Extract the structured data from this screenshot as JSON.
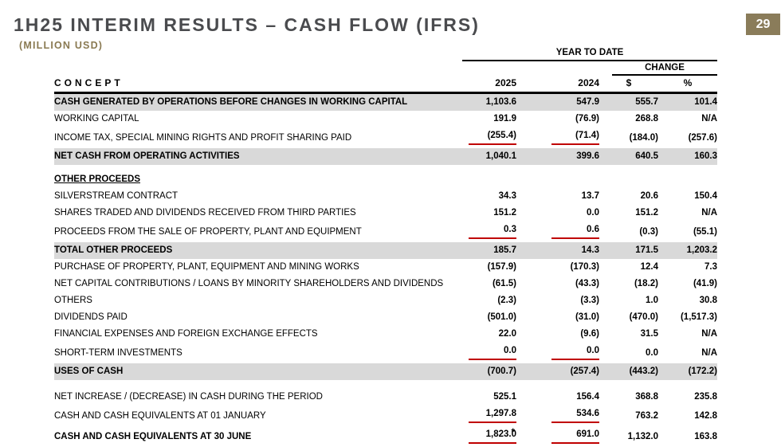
{
  "page": {
    "title": "1H25 INTERIM RESULTS – CASH FLOW (IFRS)",
    "subtitle": "(MILLION USD)",
    "page_number": "29"
  },
  "colors": {
    "accent_bronze": "#8a7a52",
    "page_box_bronze": "#8a7c5a",
    "title_gray": "#4a4b4e",
    "row_highlight_gray": "#d9d9d9",
    "underline_red": "#c00000"
  },
  "table": {
    "group_header": "YEAR TO DATE",
    "change_header": "CHANGE",
    "columns": {
      "concept": "CONCEPT",
      "y2025": "2025",
      "y2024": "2024",
      "dollar": "$",
      "percent": "%"
    },
    "rows": [
      {
        "type": "highlight",
        "label": "CASH GENERATED BY OPERATIONS BEFORE CHANGES IN WORKING CAPITAL",
        "y2025": "1,103.6",
        "y2024": "547.9",
        "usd": "555.7",
        "pct": "101.4"
      },
      {
        "type": "normal",
        "label": "WORKING CAPITAL",
        "y2025": "191.9",
        "y2024": "(76.9)",
        "usd": "268.8",
        "pct": "N/A"
      },
      {
        "type": "normal",
        "redline": true,
        "label": "INCOME TAX, SPECIAL MINING RIGHTS AND PROFIT SHARING PAID",
        "y2025": "(255.4)",
        "y2024": "(71.4)",
        "usd": "(184.0)",
        "pct": "(257.6)"
      },
      {
        "type": "highlight",
        "label": "NET CASH FROM OPERATING ACTIVITIES",
        "y2025": "1,040.1",
        "y2024": "399.6",
        "usd": "640.5",
        "pct": "160.3"
      },
      {
        "type": "spacer"
      },
      {
        "type": "section",
        "label": "OTHER PROCEEDS"
      },
      {
        "type": "normal",
        "label": "SILVERSTREAM CONTRACT",
        "y2025": "34.3",
        "y2024": "13.7",
        "usd": "20.6",
        "pct": "150.4"
      },
      {
        "type": "normal",
        "label": "SHARES TRADED AND DIVIDENDS RECEIVED FROM THIRD PARTIES",
        "y2025": "151.2",
        "y2024": "0.0",
        "usd": "151.2",
        "pct": "N/A"
      },
      {
        "type": "normal",
        "redline": true,
        "label": "PROCEEDS FROM THE SALE OF PROPERTY, PLANT AND EQUIPMENT",
        "y2025": "0.3",
        "y2024": "0.6",
        "usd": "(0.3)",
        "pct": "(55.1)"
      },
      {
        "type": "highlight",
        "label": "TOTAL OTHER PROCEEDS",
        "y2025": "185.7",
        "y2024": "14.3",
        "usd": "171.5",
        "pct": "1,203.2"
      },
      {
        "type": "normal",
        "label": "PURCHASE OF PROPERTY, PLANT, EQUIPMENT AND MINING WORKS",
        "y2025": "(157.9)",
        "y2024": "(170.3)",
        "usd": "12.4",
        "pct": "7.3"
      },
      {
        "type": "normal",
        "label": "NET CAPITAL CONTRIBUTIONS / LOANS BY MINORITY SHAREHOLDERS AND DIVIDENDS",
        "y2025": "(61.5)",
        "y2024": "(43.3)",
        "usd": "(18.2)",
        "pct": "(41.9)"
      },
      {
        "type": "normal",
        "label": "OTHERS",
        "y2025": "(2.3)",
        "y2024": "(3.3)",
        "usd": "1.0",
        "pct": "30.8"
      },
      {
        "type": "normal",
        "label": "DIVIDENDS PAID",
        "y2025": "(501.0)",
        "y2024": "(31.0)",
        "usd": "(470.0)",
        "pct": "(1,517.3)"
      },
      {
        "type": "normal",
        "label": "FINANCIAL EXPENSES AND FOREIGN EXCHANGE EFFECTS",
        "y2025": "22.0",
        "y2024": "(9.6)",
        "usd": "31.5",
        "pct": "N/A"
      },
      {
        "type": "normal",
        "redline": true,
        "label": "SHORT-TERM INVESTMENTS",
        "y2025": "0.0",
        "y2024": "0.0",
        "usd": "0.0",
        "pct": "N/A"
      },
      {
        "type": "highlight",
        "label": "USES OF CASH",
        "y2025": "(700.7)",
        "y2024": "(257.4)",
        "usd": "(443.2)",
        "pct": "(172.2)"
      },
      {
        "type": "spacer2"
      },
      {
        "type": "normal",
        "label": "NET INCREASE / (DECREASE) IN CASH DURING THE PERIOD",
        "y2025": "525.1",
        "y2024": "156.4",
        "usd": "368.8",
        "pct": "235.8"
      },
      {
        "type": "normal",
        "redline": true,
        "label": "CASH AND CASH EQUIVALENTS AT 01 JANUARY",
        "y2025": "1,297.8",
        "y2024": "534.6",
        "usd": "763.2",
        "pct": "142.8"
      },
      {
        "type": "boldrow",
        "redline": true,
        "asterisk": "*",
        "label": "CASH AND CASH EQUIVALENTS AT 30 JUNE",
        "y2025": "1,823.0",
        "y2024": "691.0",
        "usd": "1,132.0",
        "pct": "163.8"
      }
    ]
  }
}
